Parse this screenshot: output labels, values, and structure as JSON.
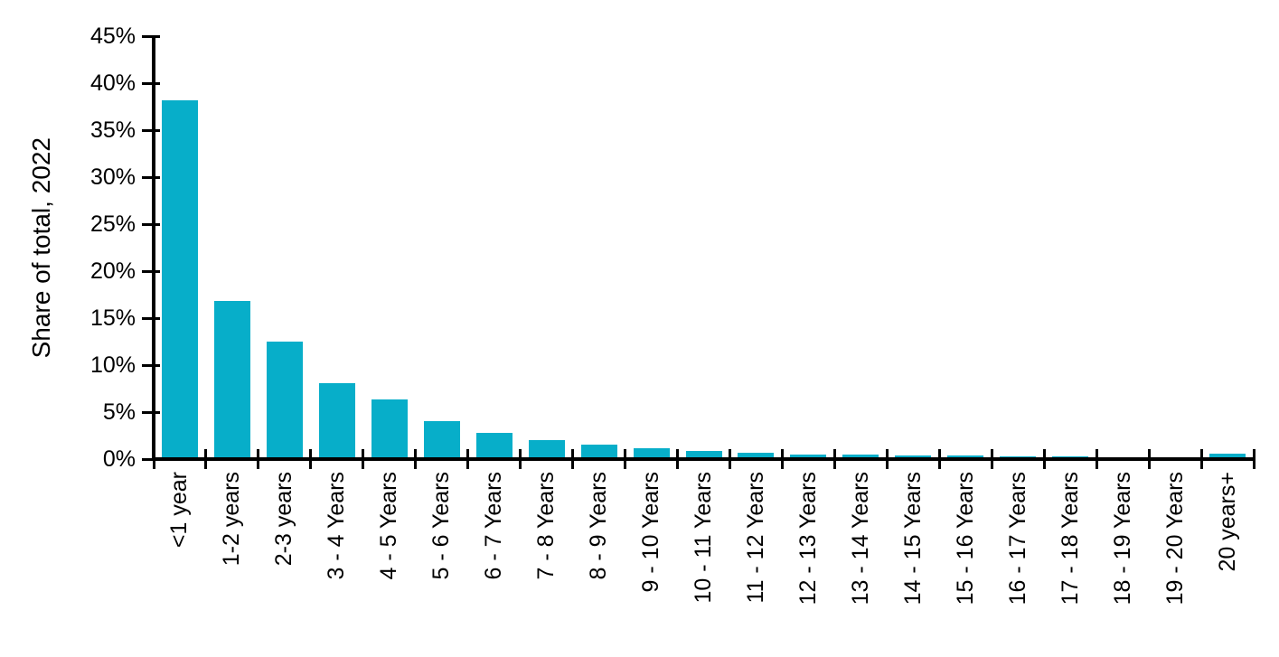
{
  "chart_data": {
    "type": "bar",
    "title": "",
    "ylabel": "Share of total, 2022",
    "xlabel": "",
    "ylim": [
      0,
      45
    ],
    "ytick_step": 5,
    "ytick_labels": [
      "0%",
      "5%",
      "10%",
      "15%",
      "20%",
      "25%",
      "30%",
      "35%",
      "40%",
      "45%"
    ],
    "categories": [
      "<1 year",
      "1-2 years",
      "2-3 years",
      "3 - 4 Years",
      "4 - 5 Years",
      "5 - 6 Years",
      "6 - 7 Years",
      "7 - 8 Years",
      "8 - 9 Years",
      "9 - 10 Years",
      "10 - 11 Years",
      "11 - 12 Years",
      "12 - 13 Years",
      "13 - 14 Years",
      "14 - 15 Years",
      "15 - 16 Years",
      "16 - 17 Years",
      "17 - 18 Years",
      "18 - 19 Years",
      "19 - 20 Years",
      "20 years+"
    ],
    "values": [
      38.2,
      16.8,
      12.5,
      8.1,
      6.3,
      4.0,
      2.8,
      2.0,
      1.5,
      1.2,
      0.9,
      0.7,
      0.5,
      0.45,
      0.4,
      0.35,
      0.3,
      0.25,
      0.15,
      0.05,
      0.6
    ],
    "bar_color": "#07aec9",
    "axis_color": "#000000",
    "text_color": "#000000",
    "grid": false,
    "legend": "none"
  }
}
